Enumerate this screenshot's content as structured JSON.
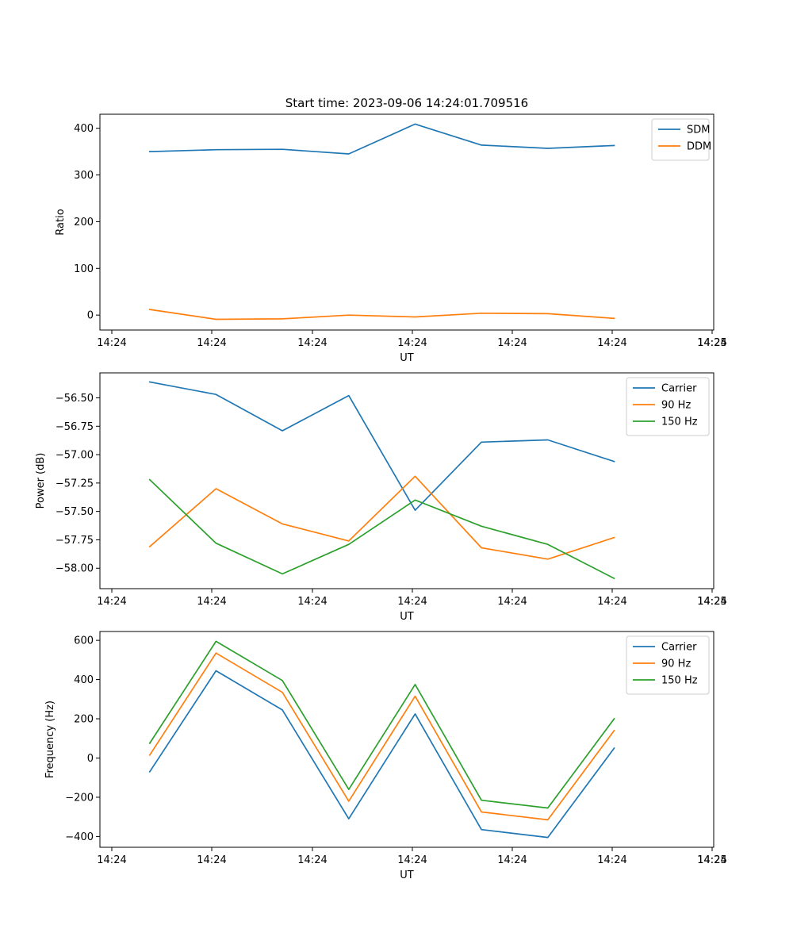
{
  "chart_data": [
    {
      "type": "line",
      "title": "Start time: 2023-09-06 14:24:01.709516",
      "xlabel": "UT",
      "ylabel": "Ratio",
      "x_tick_labels": [
        "14:24",
        "14:24",
        "14:24",
        "14:24",
        "14:24",
        "14:24",
        "14:24",
        "14:25"
      ],
      "y_ticks": [
        0,
        100,
        200,
        300,
        400
      ],
      "y_tick_labels": [
        "0",
        "100",
        "200",
        "300",
        "400"
      ],
      "ylim": [
        -32,
        430
      ],
      "x_index_range": [
        -0.75,
        8.5
      ],
      "legend_position": "top-right",
      "x": [
        0,
        1,
        2,
        3,
        4,
        5,
        6,
        7
      ],
      "series": [
        {
          "name": "SDM",
          "color": "#1f77b4",
          "values": [
            350,
            354,
            355,
            345,
            409,
            364,
            357,
            363
          ]
        },
        {
          "name": "DDM",
          "color": "#ff7f0e",
          "values": [
            12,
            -9,
            -8,
            0,
            -4,
            4,
            3,
            -7
          ]
        }
      ]
    },
    {
      "type": "line",
      "title": "",
      "xlabel": "UT",
      "ylabel": "Power (dB)",
      "x_tick_labels": [
        "14:24",
        "14:24",
        "14:24",
        "14:24",
        "14:24",
        "14:24",
        "14:24",
        "14:25"
      ],
      "y_ticks": [
        -58.0,
        -57.75,
        -57.5,
        -57.25,
        -57.0,
        -56.75,
        -56.5
      ],
      "y_tick_labels": [
        "−58.00",
        "−57.75",
        "−57.50",
        "−57.25",
        "−57.00",
        "−56.75",
        "−56.50"
      ],
      "ylim": [
        -58.18,
        -56.28
      ],
      "x_index_range": [
        -0.75,
        8.5
      ],
      "legend_position": "top-right",
      "x": [
        0,
        1,
        2,
        3,
        4,
        5,
        6,
        7
      ],
      "series": [
        {
          "name": "Carrier",
          "color": "#1f77b4",
          "values": [
            -56.36,
            -56.47,
            -56.79,
            -56.48,
            -57.49,
            -56.89,
            -56.87,
            -57.06
          ]
        },
        {
          "name": "90 Hz",
          "color": "#ff7f0e",
          "values": [
            -57.81,
            -57.3,
            -57.61,
            -57.76,
            -57.19,
            -57.82,
            -57.92,
            -57.73
          ]
        },
        {
          "name": "150 Hz",
          "color": "#2ca02c",
          "values": [
            -57.22,
            -57.78,
            -58.05,
            -57.79,
            -57.4,
            -57.63,
            -57.79,
            -58.09
          ]
        }
      ]
    },
    {
      "type": "line",
      "title": "",
      "xlabel": "UT",
      "ylabel": "Frequency (Hz)",
      "x_tick_labels": [
        "14:24",
        "14:24",
        "14:24",
        "14:24",
        "14:24",
        "14:24",
        "14:24",
        "14:25"
      ],
      "y_ticks": [
        -400,
        -200,
        0,
        200,
        400,
        600
      ],
      "y_tick_labels": [
        "−400",
        "−200",
        "0",
        "200",
        "400",
        "600"
      ],
      "ylim": [
        -455,
        645
      ],
      "x_index_range": [
        -0.75,
        8.5
      ],
      "legend_position": "top-right",
      "x": [
        0,
        1,
        2,
        3,
        4,
        5,
        6,
        7
      ],
      "series": [
        {
          "name": "Carrier",
          "color": "#1f77b4",
          "values": [
            -70,
            445,
            245,
            -310,
            225,
            -365,
            -405,
            50
          ]
        },
        {
          "name": "90 Hz",
          "color": "#ff7f0e",
          "values": [
            15,
            535,
            335,
            -220,
            315,
            -275,
            -315,
            140
          ]
        },
        {
          "name": "150 Hz",
          "color": "#2ca02c",
          "values": [
            75,
            595,
            395,
            -160,
            375,
            -215,
            -255,
            200
          ]
        }
      ]
    }
  ]
}
